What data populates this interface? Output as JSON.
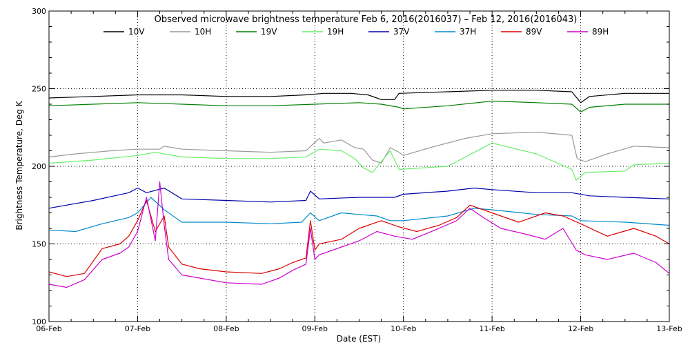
{
  "chart_data": {
    "type": "line",
    "title": "Observed microwave brightness temperature Feb  6, 2016(2016037) – Feb 12, 2016(2016043)",
    "xlabel": "Date (EST)",
    "ylabel": "Brightness Temperature, Deg K",
    "xlim": [
      0,
      7
    ],
    "ylim": [
      100,
      300
    ],
    "x_ticks": [
      {
        "value": 0,
        "label": "06-Feb"
      },
      {
        "value": 1,
        "label": "07-Feb"
      },
      {
        "value": 2,
        "label": "08-Feb"
      },
      {
        "value": 3,
        "label": "09-Feb"
      },
      {
        "value": 4,
        "label": "10-Feb"
      },
      {
        "value": 5,
        "label": "11-Feb"
      },
      {
        "value": 6,
        "label": "12-Feb"
      },
      {
        "value": 7,
        "label": "13-Feb"
      }
    ],
    "y_ticks": [
      100,
      150,
      200,
      250,
      300
    ],
    "grid": "dotted at each day and at 150, 200, 250",
    "legend_position": "top",
    "series": [
      {
        "name": "10V",
        "color": "#000000",
        "points": [
          [
            0,
            244
          ],
          [
            0.5,
            245
          ],
          [
            1,
            246
          ],
          [
            1.5,
            246
          ],
          [
            2,
            245
          ],
          [
            2.5,
            245
          ],
          [
            2.9,
            246
          ],
          [
            3.1,
            247
          ],
          [
            3.4,
            247
          ],
          [
            3.6,
            246
          ],
          [
            3.75,
            243
          ],
          [
            3.9,
            243
          ],
          [
            3.95,
            247
          ],
          [
            4.5,
            248
          ],
          [
            5,
            249
          ],
          [
            5.5,
            249
          ],
          [
            5.9,
            248
          ],
          [
            6.0,
            241
          ],
          [
            6.1,
            245
          ],
          [
            6.5,
            247
          ],
          [
            7,
            247
          ]
        ]
      },
      {
        "name": "10H",
        "color": "#999999",
        "points": [
          [
            0,
            206
          ],
          [
            0.3,
            208
          ],
          [
            0.7,
            210
          ],
          [
            1,
            211
          ],
          [
            1.25,
            211
          ],
          [
            1.3,
            213
          ],
          [
            1.5,
            211
          ],
          [
            2,
            210
          ],
          [
            2.5,
            209
          ],
          [
            2.9,
            210
          ],
          [
            3.05,
            218
          ],
          [
            3.1,
            215
          ],
          [
            3.3,
            217
          ],
          [
            3.45,
            212
          ],
          [
            3.55,
            211
          ],
          [
            3.65,
            204
          ],
          [
            3.75,
            202
          ],
          [
            3.85,
            212
          ],
          [
            3.95,
            209
          ],
          [
            4,
            207
          ],
          [
            4.3,
            212
          ],
          [
            4.7,
            218
          ],
          [
            5,
            221
          ],
          [
            5.5,
            222
          ],
          [
            5.9,
            220
          ],
          [
            5.96,
            205
          ],
          [
            6.05,
            203
          ],
          [
            6.3,
            208
          ],
          [
            6.6,
            213
          ],
          [
            7,
            212
          ]
        ]
      },
      {
        "name": "19V",
        "color": "#008000",
        "points": [
          [
            0,
            239
          ],
          [
            0.5,
            240
          ],
          [
            1,
            241
          ],
          [
            1.5,
            240
          ],
          [
            2,
            239
          ],
          [
            2.5,
            239
          ],
          [
            3,
            240
          ],
          [
            3.5,
            241
          ],
          [
            3.75,
            240
          ],
          [
            3.95,
            238
          ],
          [
            4,
            237
          ],
          [
            4.5,
            239
          ],
          [
            5,
            242
          ],
          [
            5.5,
            241
          ],
          [
            5.9,
            240
          ],
          [
            6,
            235
          ],
          [
            6.1,
            238
          ],
          [
            6.5,
            240
          ],
          [
            7,
            240
          ]
        ]
      },
      {
        "name": "19H",
        "color": "#66ee66",
        "points": [
          [
            0,
            202
          ],
          [
            0.5,
            204
          ],
          [
            1,
            207
          ],
          [
            1.2,
            209
          ],
          [
            1.3,
            208
          ],
          [
            1.5,
            206
          ],
          [
            2,
            205
          ],
          [
            2.5,
            205
          ],
          [
            2.9,
            206
          ],
          [
            3.05,
            211
          ],
          [
            3.3,
            210
          ],
          [
            3.45,
            205
          ],
          [
            3.55,
            199
          ],
          [
            3.65,
            196
          ],
          [
            3.85,
            210
          ],
          [
            3.95,
            198
          ],
          [
            4.5,
            200
          ],
          [
            5,
            215
          ],
          [
            5.5,
            208
          ],
          [
            5.9,
            198
          ],
          [
            5.95,
            191
          ],
          [
            6.05,
            196
          ],
          [
            6.5,
            197
          ],
          [
            6.6,
            201
          ],
          [
            7,
            202
          ]
        ]
      },
      {
        "name": "37V",
        "color": "#0000aa",
        "points": [
          [
            0,
            173
          ],
          [
            0.5,
            178
          ],
          [
            0.9,
            183
          ],
          [
            1.0,
            186
          ],
          [
            1.1,
            183
          ],
          [
            1.3,
            186
          ],
          [
            1.5,
            179
          ],
          [
            2,
            178
          ],
          [
            2.5,
            177
          ],
          [
            2.9,
            178
          ],
          [
            2.95,
            184
          ],
          [
            3.05,
            179
          ],
          [
            3.5,
            180
          ],
          [
            3.9,
            180
          ],
          [
            4,
            182
          ],
          [
            4.5,
            184
          ],
          [
            4.8,
            186
          ],
          [
            5,
            185
          ],
          [
            5.5,
            183
          ],
          [
            5.9,
            183
          ],
          [
            6.1,
            181
          ],
          [
            6.5,
            180
          ],
          [
            7,
            179
          ]
        ]
      },
      {
        "name": "37H",
        "color": "#0088cc",
        "points": [
          [
            0,
            159
          ],
          [
            0.3,
            158
          ],
          [
            0.6,
            163
          ],
          [
            0.9,
            167
          ],
          [
            1,
            170
          ],
          [
            1.15,
            180
          ],
          [
            1.3,
            172
          ],
          [
            1.5,
            164
          ],
          [
            2,
            164
          ],
          [
            2.5,
            163
          ],
          [
            2.85,
            164
          ],
          [
            2.95,
            170
          ],
          [
            3.05,
            165
          ],
          [
            3.3,
            170
          ],
          [
            3.5,
            169
          ],
          [
            3.7,
            168
          ],
          [
            3.85,
            165
          ],
          [
            4,
            165
          ],
          [
            4.5,
            168
          ],
          [
            4.8,
            173
          ],
          [
            5,
            172
          ],
          [
            5.5,
            169
          ],
          [
            5.9,
            168
          ],
          [
            6.0,
            165
          ],
          [
            6.5,
            164
          ],
          [
            7,
            162
          ]
        ]
      },
      {
        "name": "89V",
        "color": "#dd0000",
        "points": [
          [
            0,
            132
          ],
          [
            0.2,
            129
          ],
          [
            0.4,
            131
          ],
          [
            0.6,
            147
          ],
          [
            0.8,
            150
          ],
          [
            0.9,
            155
          ],
          [
            1.0,
            165
          ],
          [
            1.1,
            178
          ],
          [
            1.2,
            158
          ],
          [
            1.3,
            168
          ],
          [
            1.35,
            148
          ],
          [
            1.5,
            137
          ],
          [
            1.7,
            134
          ],
          [
            2,
            132
          ],
          [
            2.4,
            131
          ],
          [
            2.6,
            134
          ],
          [
            2.75,
            138
          ],
          [
            2.9,
            141
          ],
          [
            2.95,
            165
          ],
          [
            3.0,
            146
          ],
          [
            3.05,
            150
          ],
          [
            3.3,
            153
          ],
          [
            3.5,
            160
          ],
          [
            3.75,
            165
          ],
          [
            3.95,
            161
          ],
          [
            4.15,
            158
          ],
          [
            4.4,
            162
          ],
          [
            4.6,
            167
          ],
          [
            4.75,
            175
          ],
          [
            4.9,
            172
          ],
          [
            5.1,
            168
          ],
          [
            5.3,
            164
          ],
          [
            5.6,
            170
          ],
          [
            5.8,
            168
          ],
          [
            6.0,
            163
          ],
          [
            6.3,
            155
          ],
          [
            6.6,
            160
          ],
          [
            6.85,
            155
          ],
          [
            7,
            150
          ]
        ]
      },
      {
        "name": "89H",
        "color": "#cc00cc",
        "points": [
          [
            0,
            124
          ],
          [
            0.2,
            122
          ],
          [
            0.4,
            127
          ],
          [
            0.6,
            140
          ],
          [
            0.8,
            144
          ],
          [
            0.9,
            148
          ],
          [
            1.0,
            158
          ],
          [
            1.1,
            180
          ],
          [
            1.2,
            152
          ],
          [
            1.25,
            190
          ],
          [
            1.3,
            162
          ],
          [
            1.35,
            140
          ],
          [
            1.5,
            130
          ],
          [
            1.7,
            128
          ],
          [
            2,
            125
          ],
          [
            2.4,
            124
          ],
          [
            2.6,
            128
          ],
          [
            2.75,
            133
          ],
          [
            2.9,
            137
          ],
          [
            2.95,
            160
          ],
          [
            3.0,
            140
          ],
          [
            3.05,
            143
          ],
          [
            3.3,
            148
          ],
          [
            3.5,
            152
          ],
          [
            3.7,
            158
          ],
          [
            3.9,
            155
          ],
          [
            4.1,
            153
          ],
          [
            4.4,
            160
          ],
          [
            4.6,
            165
          ],
          [
            4.75,
            173
          ],
          [
            4.9,
            167
          ],
          [
            5.1,
            160
          ],
          [
            5.4,
            156
          ],
          [
            5.6,
            153
          ],
          [
            5.8,
            160
          ],
          [
            5.95,
            146
          ],
          [
            6.05,
            143
          ],
          [
            6.3,
            140
          ],
          [
            6.6,
            144
          ],
          [
            6.85,
            138
          ],
          [
            7,
            131
          ]
        ]
      }
    ]
  }
}
